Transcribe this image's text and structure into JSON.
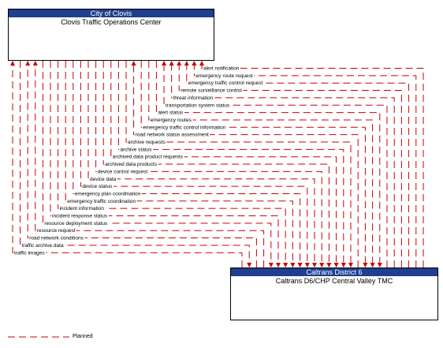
{
  "top_element": {
    "owner": "City of Clovis",
    "name": "Clovis Traffic Operations Center"
  },
  "bottom_element": {
    "owner": "Caltrans District 6",
    "name": "Caltrans D6/CHP Central Valley TMC"
  },
  "flows": [
    {
      "label": "alert notification",
      "direction": "up"
    },
    {
      "label": "emergency route request",
      "direction": "up"
    },
    {
      "label": "emergency traffic control request",
      "direction": "up"
    },
    {
      "label": "remote surveillance control",
      "direction": "up"
    },
    {
      "label": "threat information",
      "direction": "up"
    },
    {
      "label": "transportation system status",
      "direction": "up"
    },
    {
      "label": "alert status",
      "direction": "down"
    },
    {
      "label": "emergency routes",
      "direction": "down"
    },
    {
      "label": "emergency traffic control information",
      "direction": "down"
    },
    {
      "label": "road network status assessment",
      "direction": "up"
    },
    {
      "label": "archive requests",
      "direction": "down"
    },
    {
      "label": "archive status",
      "direction": "down"
    },
    {
      "label": "archived data product requests",
      "direction": "down"
    },
    {
      "label": "archived data products",
      "direction": "down"
    },
    {
      "label": "device control request",
      "direction": "down"
    },
    {
      "label": "device data",
      "direction": "down"
    },
    {
      "label": "device status",
      "direction": "down"
    },
    {
      "label": "emergency plan coordination",
      "direction": "down"
    },
    {
      "label": "emergency traffic coordination",
      "direction": "down"
    },
    {
      "label": "incident information",
      "direction": "down"
    },
    {
      "label": "incident response status",
      "direction": "down"
    },
    {
      "label": "resource deployment status",
      "direction": "down"
    },
    {
      "label": "resource request",
      "direction": "up"
    },
    {
      "label": "road network conditions",
      "direction": "up"
    },
    {
      "label": "traffic archive data",
      "direction": "down"
    },
    {
      "label": "traffic images",
      "direction": "up"
    }
  ],
  "legend": {
    "label": "Planned",
    "color": "#cc0000"
  }
}
